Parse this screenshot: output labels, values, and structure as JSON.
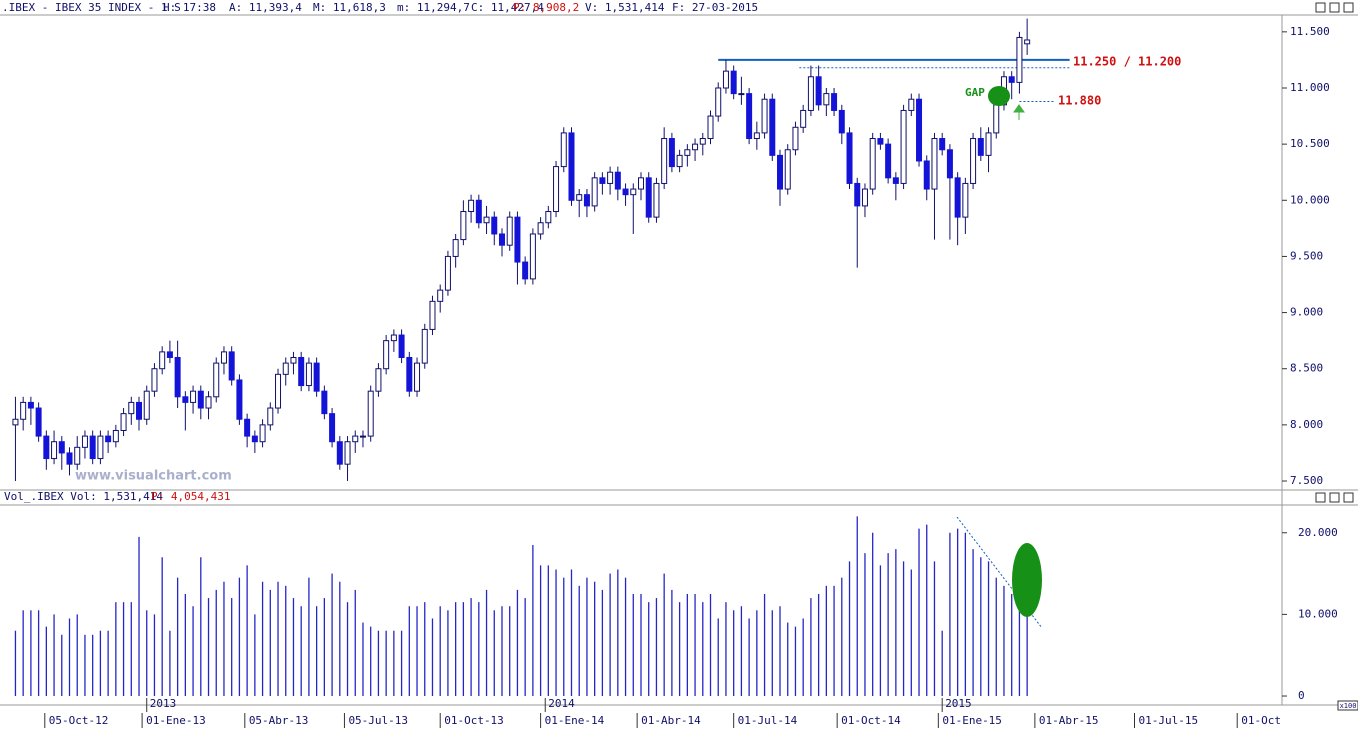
{
  "chart_data": {
    "type": "candlestick",
    "header": {
      "symbol": ".IBEX - IBEX 35 INDEX - 1 S",
      "h": "H: 17:38",
      "a": "A: 11,393,4",
      "m_hi": "M: 11,618,3",
      "m_lo": "m: 11,294,7",
      "c": "C: 11,427,4",
      "p": "P: 8,908,2",
      "v": "V: 1,531,414",
      "f": "F: 27-03-2015"
    },
    "watermark": "www.visualchart.com",
    "annotations": {
      "resistance": "11.250 / 11.200",
      "support": "11.880",
      "gap": "GAP"
    },
    "hlines": [
      {
        "value": 11250,
        "from": 91,
        "to": 136.5,
        "color": "#1060c0",
        "style": "solid"
      },
      {
        "value": 11180,
        "from": 101.5,
        "to": 136.5,
        "color": "#1060c0",
        "style": "dotted"
      },
      {
        "value": 10880,
        "from": 130,
        "to": 134.5,
        "color": "#1060c0",
        "style": "dotted"
      }
    ],
    "up_color": "#ffffff",
    "down_color": "#1414d8",
    "edge_color": "#10106a",
    "xlim": [
      -2,
      164
    ],
    "xticks": [
      {
        "value": 3.8,
        "label": "05-Oct-12"
      },
      {
        "value": 16.4,
        "label": "01-Ene-13"
      },
      {
        "value": 29.7,
        "label": "05-Abr-13"
      },
      {
        "value": 42.6,
        "label": "05-Jul-13"
      },
      {
        "value": 55,
        "label": "01-Oct-13"
      },
      {
        "value": 68,
        "label": "01-Ene-14"
      },
      {
        "value": 80.5,
        "label": "01-Abr-14"
      },
      {
        "value": 93,
        "label": "01-Jul-14"
      },
      {
        "value": 106.4,
        "label": "01-Oct-14"
      },
      {
        "value": 119.5,
        "label": "01-Ene-15"
      },
      {
        "value": 132,
        "label": "01-Abr-15"
      },
      {
        "value": 144.9,
        "label": "01-Jul-15"
      },
      {
        "value": 158.2,
        "label": "01-Oct"
      }
    ],
    "year_ticks": [
      {
        "value": 17,
        "label": "2013"
      },
      {
        "value": 68.6,
        "label": "2014"
      },
      {
        "value": 120,
        "label": "2015"
      }
    ],
    "ylim": [
      7420,
      11650
    ],
    "yticks": [
      {
        "value": 7500,
        "label": "7.500"
      },
      {
        "value": 8000,
        "label": "8.000"
      },
      {
        "value": 8500,
        "label": "8.500"
      },
      {
        "value": 9000,
        "label": "9.000"
      },
      {
        "value": 9500,
        "label": "9.500"
      },
      {
        "value": 10000,
        "label": "10.000"
      },
      {
        "value": 10500,
        "label": "10.500"
      },
      {
        "value": 11000,
        "label": "11.000"
      },
      {
        "value": 11500,
        "label": "11.500"
      }
    ],
    "ohlc": [
      [
        8000,
        8250,
        7500,
        8050
      ],
      [
        8050,
        8250,
        7950,
        8200
      ],
      [
        8200,
        8250,
        8000,
        8150
      ],
      [
        8150,
        8200,
        7850,
        7900
      ],
      [
        7900,
        7950,
        7600,
        7700
      ],
      [
        7700,
        7950,
        7650,
        7850
      ],
      [
        7850,
        7900,
        7600,
        7750
      ],
      [
        7750,
        7800,
        7550,
        7650
      ],
      [
        7650,
        7900,
        7600,
        7800
      ],
      [
        7800,
        7950,
        7700,
        7900
      ],
      [
        7900,
        7950,
        7650,
        7700
      ],
      [
        7700,
        7950,
        7650,
        7900
      ],
      [
        7900,
        7950,
        7750,
        7850
      ],
      [
        7850,
        8000,
        7800,
        7950
      ],
      [
        7950,
        8150,
        7900,
        8100
      ],
      [
        8100,
        8250,
        8000,
        8200
      ],
      [
        8200,
        8250,
        7950,
        8050
      ],
      [
        8050,
        8350,
        8000,
        8300
      ],
      [
        8300,
        8550,
        8250,
        8500
      ],
      [
        8500,
        8700,
        8450,
        8650
      ],
      [
        8650,
        8750,
        8550,
        8600
      ],
      [
        8600,
        8750,
        8150,
        8250
      ],
      [
        8250,
        8300,
        7950,
        8200
      ],
      [
        8200,
        8350,
        8100,
        8300
      ],
      [
        8300,
        8350,
        8050,
        8150
      ],
      [
        8150,
        8300,
        8050,
        8250
      ],
      [
        8250,
        8600,
        8200,
        8550
      ],
      [
        8550,
        8700,
        8450,
        8650
      ],
      [
        8650,
        8700,
        8350,
        8400
      ],
      [
        8400,
        8450,
        8000,
        8050
      ],
      [
        8050,
        8100,
        7800,
        7900
      ],
      [
        7900,
        7950,
        7750,
        7850
      ],
      [
        7850,
        8050,
        7800,
        8000
      ],
      [
        8000,
        8200,
        7950,
        8150
      ],
      [
        8150,
        8500,
        8100,
        8450
      ],
      [
        8450,
        8600,
        8350,
        8550
      ],
      [
        8550,
        8650,
        8450,
        8600
      ],
      [
        8600,
        8650,
        8300,
        8350
      ],
      [
        8350,
        8600,
        8300,
        8550
      ],
      [
        8550,
        8600,
        8250,
        8300
      ],
      [
        8300,
        8350,
        8050,
        8100
      ],
      [
        8100,
        8150,
        7800,
        7850
      ],
      [
        7850,
        7900,
        7600,
        7650
      ],
      [
        7650,
        7900,
        7500,
        7850
      ],
      [
        7850,
        7950,
        7750,
        7900
      ],
      [
        7900,
        7950,
        7800,
        7900
      ],
      [
        7900,
        8350,
        7850,
        8300
      ],
      [
        8300,
        8550,
        8250,
        8500
      ],
      [
        8500,
        8800,
        8450,
        8750
      ],
      [
        8750,
        8850,
        8650,
        8800
      ],
      [
        8800,
        8850,
        8550,
        8600
      ],
      [
        8600,
        8650,
        8250,
        8300
      ],
      [
        8300,
        8600,
        8250,
        8550
      ],
      [
        8550,
        8900,
        8500,
        8850
      ],
      [
        8850,
        9150,
        8800,
        9100
      ],
      [
        9100,
        9250,
        9000,
        9200
      ],
      [
        9200,
        9550,
        9150,
        9500
      ],
      [
        9500,
        9700,
        9400,
        9650
      ],
      [
        9650,
        10000,
        9600,
        9900
      ],
      [
        9900,
        10050,
        9800,
        10000
      ],
      [
        10000,
        10050,
        9750,
        9800
      ],
      [
        9800,
        9950,
        9700,
        9850
      ],
      [
        9850,
        9900,
        9600,
        9700
      ],
      [
        9700,
        9750,
        9500,
        9600
      ],
      [
        9600,
        9900,
        9550,
        9850
      ],
      [
        9850,
        9900,
        9250,
        9450
      ],
      [
        9450,
        9500,
        9250,
        9300
      ],
      [
        9300,
        9750,
        9250,
        9700
      ],
      [
        9700,
        9850,
        9650,
        9800
      ],
      [
        9800,
        9950,
        9750,
        9900
      ],
      [
        9900,
        10350,
        9850,
        10300
      ],
      [
        10300,
        10650,
        10250,
        10600
      ],
      [
        10600,
        10650,
        9950,
        10000
      ],
      [
        10000,
        10100,
        9850,
        10050
      ],
      [
        10050,
        10100,
        9850,
        9950
      ],
      [
        9950,
        10250,
        9900,
        10200
      ],
      [
        10200,
        10250,
        10050,
        10150
      ],
      [
        10150,
        10300,
        10050,
        10250
      ],
      [
        10250,
        10300,
        10000,
        10100
      ],
      [
        10100,
        10150,
        9950,
        10050
      ],
      [
        10050,
        10150,
        9700,
        10100
      ],
      [
        10100,
        10250,
        10000,
        10200
      ],
      [
        10200,
        10250,
        9800,
        9850
      ],
      [
        9850,
        10200,
        9800,
        10150
      ],
      [
        10150,
        10650,
        10100,
        10550
      ],
      [
        10550,
        10600,
        10250,
        10300
      ],
      [
        10300,
        10450,
        10250,
        10400
      ],
      [
        10400,
        10500,
        10300,
        10450
      ],
      [
        10450,
        10550,
        10350,
        10500
      ],
      [
        10500,
        10600,
        10400,
        10550
      ],
      [
        10550,
        10800,
        10500,
        10750
      ],
      [
        10750,
        11050,
        10700,
        11000
      ],
      [
        11000,
        11250,
        10950,
        11150
      ],
      [
        11150,
        11200,
        10900,
        10950
      ],
      [
        10950,
        11100,
        10850,
        10950
      ],
      [
        10950,
        11000,
        10500,
        10550
      ],
      [
        10550,
        10700,
        10450,
        10600
      ],
      [
        10600,
        10950,
        10550,
        10900
      ],
      [
        10900,
        10950,
        10350,
        10400
      ],
      [
        10400,
        10450,
        9950,
        10100
      ],
      [
        10100,
        10500,
        10050,
        10450
      ],
      [
        10450,
        10700,
        10400,
        10650
      ],
      [
        10650,
        10850,
        10600,
        10800
      ],
      [
        10800,
        11200,
        10750,
        11100
      ],
      [
        11100,
        11200,
        10800,
        10850
      ],
      [
        10850,
        11000,
        10750,
        10950
      ],
      [
        10950,
        11000,
        10750,
        10800
      ],
      [
        10800,
        10850,
        10500,
        10600
      ],
      [
        10600,
        10650,
        10100,
        10150
      ],
      [
        10150,
        10200,
        9400,
        9950
      ],
      [
        9950,
        10150,
        9850,
        10100
      ],
      [
        10100,
        10600,
        10050,
        10550
      ],
      [
        10550,
        10600,
        10450,
        10500
      ],
      [
        10500,
        10550,
        10150,
        10200
      ],
      [
        10200,
        10250,
        10000,
        10150
      ],
      [
        10150,
        10850,
        10100,
        10800
      ],
      [
        10800,
        10950,
        10750,
        10900
      ],
      [
        10900,
        10950,
        10300,
        10350
      ],
      [
        10350,
        10400,
        10000,
        10100
      ],
      [
        10100,
        10600,
        9650,
        10550
      ],
      [
        10550,
        10600,
        10400,
        10450
      ],
      [
        10450,
        10500,
        9650,
        10200
      ],
      [
        10200,
        10250,
        9600,
        9850
      ],
      [
        9850,
        10200,
        9700,
        10150
      ],
      [
        10150,
        10600,
        10100,
        10550
      ],
      [
        10550,
        10650,
        10350,
        10400
      ],
      [
        10400,
        10650,
        10250,
        10600
      ],
      [
        10600,
        10900,
        10550,
        10850
      ],
      [
        10850,
        11150,
        10800,
        11100
      ],
      [
        11100,
        11150,
        10900,
        11050
      ],
      [
        11050,
        11500,
        10950,
        11450
      ],
      [
        11393.4,
        11618.3,
        11294.7,
        11427.4
      ]
    ],
    "volume": {
      "label": "Vol_.IBEX Vol: 1,531,414",
      "p": "P: 4,054,431",
      "unit": "x100",
      "color": "#2626c8",
      "ylim": [
        -1100,
        23400
      ],
      "yticks": [
        0,
        {
          "value": 10000,
          "label": "10.000"
        },
        {
          "value": 20000,
          "label": "20.000"
        }
      ],
      "values": [
        8000,
        10500,
        10500,
        10500,
        8500,
        10000,
        7500,
        9500,
        10000,
        7500,
        7500,
        8000,
        8000,
        11500,
        11500,
        11500,
        19500,
        10500,
        10000,
        17000,
        8000,
        14500,
        12500,
        11000,
        17000,
        12000,
        13000,
        14000,
        12000,
        14500,
        16000,
        10000,
        14000,
        13000,
        14000,
        13500,
        12000,
        11000,
        14500,
        11000,
        12000,
        15000,
        14000,
        11500,
        13000,
        9000,
        8500,
        8000,
        8000,
        8000,
        8000,
        11000,
        11000,
        11500,
        9500,
        11000,
        10500,
        11500,
        11500,
        12000,
        11500,
        13000,
        10500,
        11000,
        11000,
        13000,
        12000,
        18500,
        16000,
        16000,
        15500,
        14500,
        15500,
        13500,
        14500,
        14000,
        13000,
        15000,
        15500,
        14500,
        12500,
        12500,
        11500,
        12000,
        15000,
        13000,
        11500,
        12500,
        12500,
        11500,
        12500,
        9500,
        11500,
        10500,
        11000,
        9500,
        10500,
        12500,
        10500,
        11000,
        9000,
        8500,
        9500,
        12000,
        12500,
        13500,
        13500,
        14500,
        16500,
        22000,
        17500,
        20000,
        16000,
        17500,
        18000,
        16500,
        15500,
        20500,
        21000,
        16500,
        8000,
        20000,
        20500,
        20000,
        18000,
        17000,
        16500,
        14500,
        13500,
        12500,
        14000,
        17000
      ]
    }
  }
}
